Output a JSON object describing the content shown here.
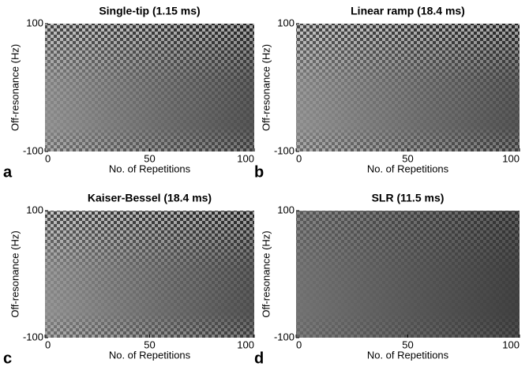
{
  "chart_data": [
    {
      "type": "heatmap",
      "title": "Single-tip (1.15 ms)",
      "panel": "a",
      "xlabel": "No. of Repetitions",
      "ylabel": "Off-resonance (Hz)",
      "xlim": [
        0,
        100
      ],
      "ylim": [
        -100,
        100
      ],
      "xticks": [
        0,
        50,
        100
      ],
      "yticks": [
        -100,
        100
      ]
    },
    {
      "type": "heatmap",
      "title": "Linear ramp (18.4 ms)",
      "panel": "b",
      "xlabel": "No. of Repetitions",
      "ylabel": "Off-resonance (Hz)",
      "xlim": [
        0,
        100
      ],
      "ylim": [
        -100,
        100
      ],
      "xticks": [
        0,
        50,
        100
      ],
      "yticks": [
        -100,
        100
      ]
    },
    {
      "type": "heatmap",
      "title": "Kaiser-Bessel (18.4 ms)",
      "panel": "c",
      "xlabel": "No. of Repetitions",
      "ylabel": "Off-resonance (Hz)",
      "xlim": [
        0,
        100
      ],
      "ylim": [
        -100,
        100
      ],
      "xticks": [
        0,
        50,
        100
      ],
      "yticks": [
        -100,
        100
      ]
    },
    {
      "type": "heatmap",
      "title": "SLR (11.5 ms)",
      "panel": "d",
      "xlabel": "No. of Repetitions",
      "ylabel": "Off-resonance (Hz)",
      "xlim": [
        0,
        100
      ],
      "ylim": [
        -100,
        100
      ],
      "xticks": [
        0,
        50,
        100
      ],
      "yticks": [
        -100,
        100
      ]
    }
  ]
}
